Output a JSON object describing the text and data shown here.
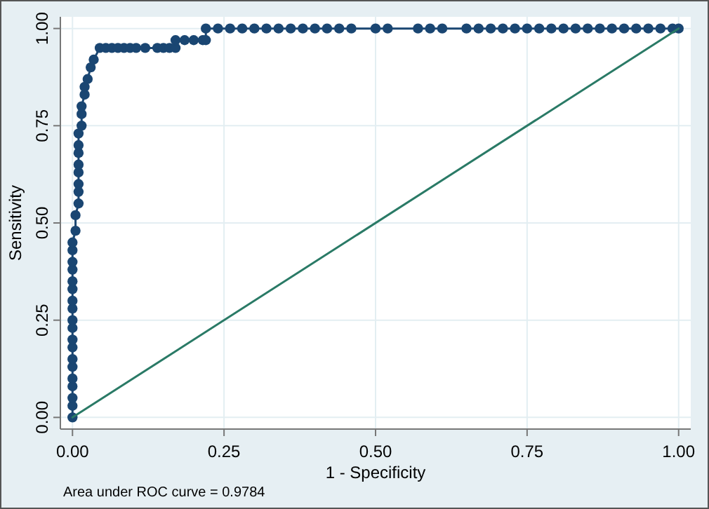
{
  "chart_data": {
    "type": "line",
    "xlabel": "1 - Specificity",
    "ylabel": "Sensitivity",
    "xlim": [
      -0.02,
      1.02
    ],
    "ylim": [
      -0.03,
      1.03
    ],
    "xticks": [
      {
        "value": 0,
        "label": "0.00"
      },
      {
        "value": 0.25,
        "label": "0.25"
      },
      {
        "value": 0.5,
        "label": "0.50"
      },
      {
        "value": 0.75,
        "label": "0.75"
      },
      {
        "value": 1,
        "label": "1.00"
      }
    ],
    "yticks": [
      {
        "value": 0,
        "label": "0.00"
      },
      {
        "value": 0.25,
        "label": "0.25"
      },
      {
        "value": 0.5,
        "label": "0.50"
      },
      {
        "value": 0.75,
        "label": "0.75"
      },
      {
        "value": 1,
        "label": "1.00"
      }
    ],
    "grid": true,
    "annotations": [
      "Area under ROC curve = 0.9784"
    ],
    "series": [
      {
        "color": "#1a4672",
        "marker": "circle",
        "x": [
          0,
          0,
          0,
          0,
          0,
          0,
          0,
          0,
          0,
          0,
          0,
          0,
          0,
          0,
          0,
          0,
          0,
          0,
          0,
          0.005,
          0.005,
          0.01,
          0.01,
          0.01,
          0.01,
          0.01,
          0.01,
          0.01,
          0.01,
          0.015,
          0.015,
          0.015,
          0.02,
          0.02,
          0.025,
          0.03,
          0.035,
          0.045,
          0.055,
          0.065,
          0.075,
          0.085,
          0.095,
          0.105,
          0.12,
          0.14,
          0.15,
          0.16,
          0.17,
          0.17,
          0.185,
          0.2,
          0.215,
          0.22,
          0.22,
          0.24,
          0.26,
          0.28,
          0.3,
          0.32,
          0.34,
          0.36,
          0.38,
          0.4,
          0.42,
          0.44,
          0.46,
          0.5,
          0.52,
          0.57,
          0.59,
          0.61,
          0.65,
          0.67,
          0.69,
          0.71,
          0.73,
          0.75,
          0.77,
          0.79,
          0.81,
          0.83,
          0.85,
          0.87,
          0.89,
          0.91,
          0.93,
          0.95,
          0.97,
          0.99,
          1
        ],
        "values": [
          0,
          0.03,
          0.05,
          0.08,
          0.1,
          0.13,
          0.15,
          0.18,
          0.2,
          0.23,
          0.25,
          0.28,
          0.3,
          0.33,
          0.35,
          0.38,
          0.4,
          0.43,
          0.45,
          0.48,
          0.52,
          0.55,
          0.58,
          0.6,
          0.63,
          0.65,
          0.68,
          0.7,
          0.73,
          0.75,
          0.78,
          0.8,
          0.83,
          0.85,
          0.87,
          0.9,
          0.92,
          0.95,
          0.95,
          0.95,
          0.95,
          0.95,
          0.95,
          0.95,
          0.95,
          0.95,
          0.95,
          0.95,
          0.95,
          0.97,
          0.97,
          0.97,
          0.97,
          0.97,
          1,
          1,
          1,
          1,
          1,
          1,
          1,
          1,
          1,
          1,
          1,
          1,
          1,
          1,
          1,
          1,
          1,
          1,
          1,
          1,
          1,
          1,
          1,
          1,
          1,
          1,
          1,
          1,
          1,
          1,
          1,
          1,
          1,
          1,
          1,
          1,
          1
        ]
      },
      {
        "color": "#2a7a66",
        "marker": "none",
        "x": [
          0,
          1
        ],
        "values": [
          0,
          1
        ]
      }
    ]
  }
}
